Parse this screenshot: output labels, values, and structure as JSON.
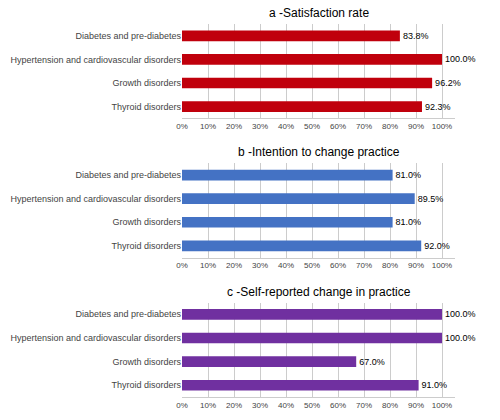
{
  "chart_data": [
    {
      "type": "bar",
      "orientation": "horizontal",
      "title": "a -Satisfaction rate",
      "categories": [
        "Diabetes and pre-diabetes",
        "Hypertension and cardiovascular disorders",
        "Growth disorders",
        "Thyroid disorders"
      ],
      "values": [
        83.8,
        100.0,
        96.2,
        92.3
      ],
      "value_labels": [
        "83.8%",
        "100.0%",
        "96.2%",
        "92.3%"
      ],
      "data_labels": true,
      "color": "#C0000C",
      "xlim": [
        0,
        105
      ],
      "xticks": [
        {
          "value": 0,
          "label": "0%"
        },
        {
          "value": 10,
          "label": "10%"
        },
        {
          "value": 20,
          "label": "20%"
        },
        {
          "value": 30,
          "label": "30%"
        },
        {
          "value": 40,
          "label": "40%"
        },
        {
          "value": 50,
          "label": "50%"
        },
        {
          "value": 60,
          "label": "60%"
        },
        {
          "value": 70,
          "label": "70%"
        },
        {
          "value": 80,
          "label": "80%"
        },
        {
          "value": 90,
          "label": "90%"
        },
        {
          "value": 100,
          "label": "100%"
        }
      ],
      "grid": true
    },
    {
      "type": "bar",
      "orientation": "horizontal",
      "title": "b -Intention to change practice",
      "categories": [
        "Diabetes and pre-diabetes",
        "Hypertension and cardiovascular disorders",
        "Growth disorders",
        "Thyroid disorders"
      ],
      "values": [
        81.0,
        89.5,
        81.0,
        92.0
      ],
      "value_labels": [
        "81.0%",
        "89.5%",
        "81.0%",
        "92.0%"
      ],
      "data_labels": true,
      "color": "#4472C4",
      "xlim": [
        0,
        105
      ],
      "xticks": [
        {
          "value": 0,
          "label": "0%"
        },
        {
          "value": 10,
          "label": "10%"
        },
        {
          "value": 20,
          "label": "20%"
        },
        {
          "value": 30,
          "label": "30%"
        },
        {
          "value": 40,
          "label": "40%"
        },
        {
          "value": 50,
          "label": "50%"
        },
        {
          "value": 60,
          "label": "60%"
        },
        {
          "value": 70,
          "label": "70%"
        },
        {
          "value": 80,
          "label": "80%"
        },
        {
          "value": 90,
          "label": "90%"
        },
        {
          "value": 100,
          "label": "100%"
        }
      ],
      "grid": true
    },
    {
      "type": "bar",
      "orientation": "horizontal",
      "title": "c -Self-reported change in practice",
      "categories": [
        "Diabetes and pre-diabetes",
        "Hypertension and cardiovascular disorders",
        "Growth disorders",
        "Thyroid disorders"
      ],
      "values": [
        100.0,
        100.0,
        67.0,
        91.0
      ],
      "value_labels": [
        "100.0%",
        "100.0%",
        "67.0%",
        "91.0%"
      ],
      "data_labels": true,
      "color": "#7030A0",
      "xlim": [
        0,
        105
      ],
      "xticks": [
        {
          "value": 0,
          "label": "0%"
        },
        {
          "value": 10,
          "label": "10%"
        },
        {
          "value": 20,
          "label": "20%"
        },
        {
          "value": 30,
          "label": "30%"
        },
        {
          "value": 40,
          "label": "40%"
        },
        {
          "value": 50,
          "label": "50%"
        },
        {
          "value": 60,
          "label": "60%"
        },
        {
          "value": 70,
          "label": "70%"
        },
        {
          "value": 80,
          "label": "80%"
        },
        {
          "value": 90,
          "label": "90%"
        },
        {
          "value": 100,
          "label": "100%"
        }
      ],
      "grid": true
    }
  ]
}
